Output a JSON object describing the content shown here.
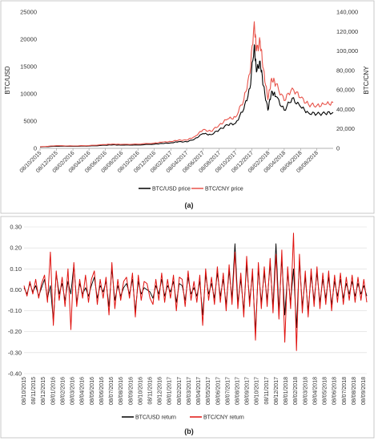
{
  "chart_data": [
    {
      "panel_label": "(a)",
      "type": "line",
      "xlabel": "",
      "ylabel_left": "BTC/USD",
      "ylabel_right": "BTC/CNY",
      "ylim_left": [
        0,
        25000
      ],
      "ylim_right": [
        0,
        140000
      ],
      "yticks_left": [
        "0",
        "5000",
        "10000",
        "15000",
        "20000",
        "25000"
      ],
      "yticks_right": [
        "0",
        "20,000",
        "40,000",
        "60,000",
        "80,000",
        "100,000",
        "120,000",
        "140,000"
      ],
      "x_tick_labels": [
        "08/10/2015",
        "08/12/2015",
        "08/02/2016",
        "08/04/2016",
        "08/06/2016",
        "08/08/2016",
        "08/10/2016",
        "08/12/2016",
        "08/02/2017",
        "08/04/2017",
        "08/06/2017",
        "08/08/2017",
        "08/10/2017",
        "08/12/2017",
        "08/02/2018",
        "08/04/2018",
        "08/06/2018",
        "08/08/2018"
      ],
      "legend_position": "bottom-center",
      "series": [
        {
          "name": "BTC/USD price",
          "color": "#000000",
          "x": [
            "2015-10-08",
            "2015-12-08",
            "2016-02-08",
            "2016-04-08",
            "2016-06-08",
            "2016-07-08",
            "2016-08-08",
            "2016-10-08",
            "2016-12-08",
            "2017-01-08",
            "2017-02-08",
            "2017-03-08",
            "2017-04-08",
            "2017-05-08",
            "2017-06-08",
            "2017-07-08",
            "2017-08-08",
            "2017-09-08",
            "2017-10-08",
            "2017-11-08",
            "2017-12-01",
            "2017-12-17",
            "2017-12-25",
            "2018-01-08",
            "2018-01-20",
            "2018-02-06",
            "2018-02-20",
            "2018-03-08",
            "2018-04-08",
            "2018-05-08",
            "2018-06-08",
            "2018-07-08",
            "2018-08-08",
            "2018-09-08",
            "2018-10-08"
          ],
          "values": [
            240,
            400,
            380,
            420,
            580,
            650,
            590,
            620,
            770,
            900,
            1000,
            1200,
            1200,
            1700,
            2700,
            2500,
            3400,
            4300,
            4600,
            7200,
            11000,
            19000,
            14000,
            16000,
            11500,
            7000,
            10500,
            9500,
            7000,
            9200,
            7600,
            6500,
            6300,
            6400,
            6600
          ]
        },
        {
          "name": "BTC/CNY price",
          "color": "#e8534a",
          "x": [
            "2015-10-08",
            "2015-12-08",
            "2016-02-08",
            "2016-04-08",
            "2016-06-08",
            "2016-07-08",
            "2016-08-08",
            "2016-10-08",
            "2016-12-08",
            "2017-01-08",
            "2017-02-08",
            "2017-03-08",
            "2017-04-08",
            "2017-05-08",
            "2017-06-08",
            "2017-07-08",
            "2017-08-08",
            "2017-09-08",
            "2017-10-08",
            "2017-11-08",
            "2017-12-01",
            "2017-12-17",
            "2017-12-25",
            "2018-01-08",
            "2018-01-20",
            "2018-02-06",
            "2018-02-20",
            "2018-03-08",
            "2018-04-08",
            "2018-05-08",
            "2018-06-08",
            "2018-07-08",
            "2018-08-08",
            "2018-09-08",
            "2018-10-08"
          ],
          "values": [
            1600,
            2700,
            2500,
            2800,
            3900,
            4400,
            4000,
            4300,
            5400,
            6400,
            7000,
            8400,
            8400,
            12000,
            19000,
            17500,
            24000,
            30000,
            32000,
            50000,
            77000,
            130000,
            100000,
            110000,
            82000,
            50000,
            72000,
            66000,
            49000,
            62000,
            52000,
            45000,
            44000,
            45000,
            47000
          ]
        }
      ]
    },
    {
      "panel_label": "(b)",
      "type": "line",
      "xlabel": "",
      "ylabel": "",
      "ylim": [
        -0.4,
        0.3
      ],
      "yticks": [
        "0.30",
        "0.20",
        "0.10",
        "0.00",
        "-0.10",
        "-0.20",
        "-0.30",
        "-0.40"
      ],
      "x_tick_labels": [
        "08/10/2015",
        "08/11/2015",
        "08/12/2015",
        "08/01/2016",
        "08/02/2016",
        "08/03/2016",
        "08/04/2016",
        "08/05/2016",
        "08/06/2016",
        "08/07/2016",
        "08/08/2016",
        "08/09/2016",
        "08/10/2016",
        "08/11/2016",
        "08/12/2016",
        "08/01/2017",
        "08/02/2017",
        "08/03/2017",
        "08/04/2017",
        "08/05/2017",
        "08/06/2017",
        "08/07/2017",
        "08/08/2017",
        "08/09/2017",
        "08/10/2017",
        "08/11/2017",
        "08/12/2017",
        "08/01/2018",
        "08/02/2018",
        "08/03/2018",
        "08/04/2018",
        "08/05/2018",
        "08/06/2018",
        "08/07/2018",
        "08/08/2018",
        "08/09/2018"
      ],
      "legend_position": "bottom-center",
      "series": [
        {
          "name": "BTC/USD return",
          "color": "#000000",
          "values": [
            0.01,
            -0.02,
            0.03,
            -0.01,
            0.02,
            -0.03,
            0.01,
            0.05,
            -0.04,
            0.02,
            -0.15,
            0.08,
            -0.02,
            0.03,
            -0.05,
            0.04,
            -0.02,
            0.12,
            -0.06,
            0.03,
            -0.02,
            0.01,
            -0.03,
            0.02,
            0.06,
            -0.04,
            0.02,
            -0.01,
            0.04,
            -0.08,
            0.1,
            -0.05,
            0.02,
            -0.03,
            0.01,
            0.03,
            -0.02,
            0.05,
            -0.1,
            0.04,
            -0.02,
            0.01,
            0.0,
            -0.01,
            -0.04,
            0.02,
            -0.02,
            0.05,
            -0.03,
            0.02,
            -0.01,
            0.04,
            -0.06,
            0.03,
            0.02,
            -0.05,
            0.06,
            -0.02,
            0.01,
            -0.03,
            0.04,
            -0.12,
            0.07,
            -0.02,
            0.03,
            -0.04,
            0.08,
            -0.03,
            0.05,
            -0.07,
            0.09,
            -0.04,
            0.22,
            -0.06,
            0.05,
            -0.1,
            0.12,
            -0.05,
            0.07,
            -0.2,
            0.1,
            -0.06,
            0.08,
            -0.05,
            0.12,
            -0.08,
            0.22,
            -0.1,
            0.15,
            -0.12,
            0.08,
            -0.06,
            0.1,
            -0.18,
            0.14,
            -0.08,
            0.06,
            -0.1,
            0.07,
            -0.05,
            0.08,
            -0.06,
            0.05,
            -0.04,
            0.06,
            -0.07,
            0.04,
            -0.03,
            0.05,
            -0.04,
            0.03,
            -0.02,
            0.04,
            -0.03,
            0.03,
            -0.02,
            0.02,
            -0.03
          ]
        },
        {
          "name": "BTC/CNY return",
          "color": "#e0120f",
          "values": [
            0.02,
            -0.03,
            0.04,
            -0.02,
            0.05,
            -0.04,
            0.03,
            0.07,
            -0.06,
            0.18,
            -0.17,
            0.09,
            -0.05,
            0.06,
            -0.08,
            0.1,
            -0.19,
            0.13,
            -0.08,
            0.05,
            -0.04,
            0.07,
            -0.06,
            0.05,
            0.09,
            -0.07,
            0.05,
            -0.04,
            0.06,
            -0.12,
            0.13,
            -0.09,
            0.05,
            -0.05,
            0.04,
            0.06,
            -0.04,
            0.08,
            -0.13,
            0.07,
            -0.05,
            0.04,
            0.03,
            -0.04,
            -0.07,
            0.05,
            -0.05,
            0.08,
            -0.06,
            0.05,
            -0.04,
            0.07,
            -0.1,
            0.06,
            0.05,
            -0.08,
            0.09,
            -0.05,
            0.04,
            -0.06,
            0.07,
            -0.17,
            0.1,
            -0.05,
            0.06,
            -0.07,
            0.11,
            -0.06,
            0.08,
            -0.1,
            0.12,
            -0.07,
            0.18,
            -0.09,
            0.08,
            -0.13,
            0.16,
            -0.08,
            0.1,
            -0.24,
            0.13,
            -0.09,
            0.11,
            -0.08,
            0.15,
            -0.11,
            0.17,
            -0.14,
            0.19,
            -0.25,
            0.11,
            -0.09,
            0.27,
            -0.29,
            0.17,
            -0.11,
            0.09,
            -0.13,
            0.1,
            -0.08,
            0.11,
            -0.09,
            0.08,
            -0.07,
            0.09,
            -0.1,
            0.07,
            -0.06,
            0.08,
            -0.07,
            0.06,
            -0.05,
            0.07,
            -0.06,
            0.06,
            -0.05,
            0.05,
            -0.06
          ]
        }
      ]
    }
  ]
}
